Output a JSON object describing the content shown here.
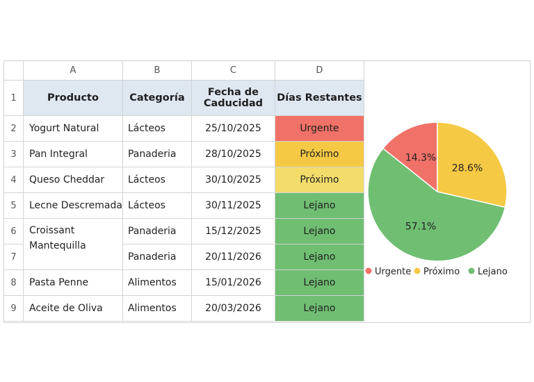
{
  "sheet": {
    "columns": [
      "A",
      "B",
      "C",
      "D"
    ],
    "row_numbers": [
      "1",
      "2",
      "3",
      "4",
      "5",
      "6",
      "7",
      "8",
      "9"
    ],
    "headers": {
      "producto": "Producto",
      "categoria": "Categoría",
      "fecha": "Fecha de Caducidad",
      "dias": "Días Restantes"
    },
    "rows": [
      {
        "producto": "Yogurt Natural",
        "categoria": "Lácteos",
        "fecha": "25/10/2025",
        "dias": "Urgente"
      },
      {
        "producto": "Pan Integral",
        "categoria": "Panaderia",
        "fecha": "28/10/2025",
        "dias": "Próximo"
      },
      {
        "producto": "Queso Cheddar",
        "categoria": "Lácteos",
        "fecha": "30/10/2025",
        "dias": "Próximo"
      },
      {
        "producto": "Lecne Descremada",
        "categoria": "Lácteos",
        "fecha": "30/11/2025",
        "dias": "Lejano"
      },
      {
        "producto": "Croissant Mantequilla",
        "categoria": "Panaderia",
        "fecha": "15/12/2025",
        "dias": "Lejano"
      },
      {
        "producto": "",
        "categoria": "Panaderia",
        "fecha": "20/11/2026",
        "dias": "Lejano"
      },
      {
        "producto": "Pasta Penne",
        "categoria": "Alimentos",
        "fecha": "15/01/2026",
        "dias": "Lejano"
      },
      {
        "producto": "Aceite de Oliva",
        "categoria": "Alimentos",
        "fecha": "20/03/2026",
        "dias": "Lejano"
      }
    ]
  },
  "colors": {
    "urgente": "#f07167",
    "proximo": "#f6c945",
    "lejano": "#6fbe72",
    "header_fill": "#dfe7f1"
  },
  "chart_data": {
    "type": "pie",
    "categories": [
      "Urgente",
      "Próximo",
      "Lejano"
    ],
    "values": [
      14.3,
      28.6,
      57.1
    ],
    "labels": [
      "14.3%",
      "28.6%",
      "57.1%"
    ],
    "colors": [
      "#f07167",
      "#f6c945",
      "#6fbe72"
    ],
    "legend": "bottom"
  }
}
